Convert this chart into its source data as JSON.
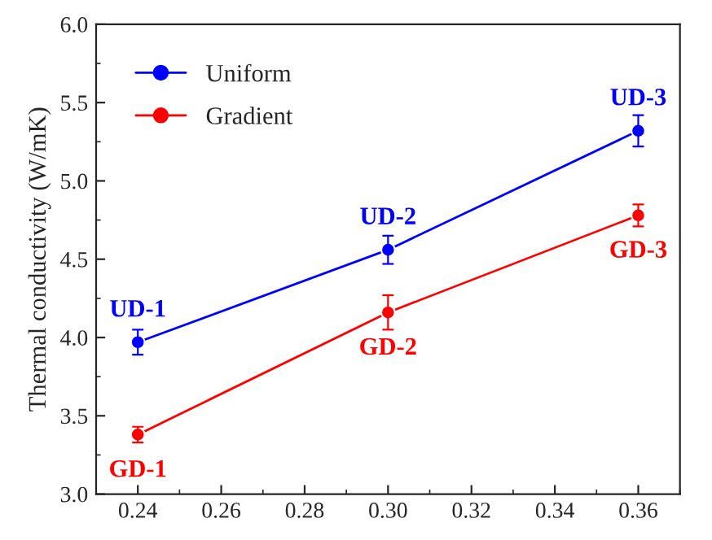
{
  "chart_data": {
    "type": "line",
    "ylabel": "Thermal conductivity (W/mK)",
    "x": [
      0.24,
      0.3,
      0.36
    ],
    "series": [
      {
        "name": "Uniform",
        "color": "#0000ff",
        "values": [
          3.97,
          4.56,
          5.32
        ],
        "errors": [
          0.08,
          0.09,
          0.1
        ]
      },
      {
        "name": "Gradient",
        "color": "#ff0000",
        "values": [
          3.38,
          4.16,
          4.78
        ],
        "errors": [
          0.05,
          0.11,
          0.07
        ]
      }
    ],
    "xlim": [
      0.23,
      0.37
    ],
    "xticks": [
      {
        "value": 0.24,
        "label": "0.24"
      },
      {
        "value": 0.26,
        "label": "0.26"
      },
      {
        "value": 0.28,
        "label": "0.28"
      },
      {
        "value": 0.3,
        "label": "0.30"
      },
      {
        "value": 0.32,
        "label": "0.32"
      },
      {
        "value": 0.34,
        "label": "0.34"
      },
      {
        "value": 0.36,
        "label": "0.36"
      }
    ],
    "ylim": [
      3.0,
      6.0
    ],
    "yticks": [
      {
        "value": 3.0,
        "label": "3.0"
      },
      {
        "value": 3.5,
        "label": "3.5"
      },
      {
        "value": 4.0,
        "label": "4.0"
      },
      {
        "value": 4.5,
        "label": "4.5"
      },
      {
        "value": 5.0,
        "label": "5.0"
      },
      {
        "value": 5.5,
        "label": "5.5"
      },
      {
        "value": 6.0,
        "label": "6.0"
      }
    ],
    "annotations": [
      {
        "text": "UD-1",
        "x": 0.24,
        "y": 3.97
      },
      {
        "text": "UD-2",
        "x": 0.3,
        "y": 4.56
      },
      {
        "text": "UD-3",
        "x": 0.36,
        "y": 5.32
      },
      {
        "text": "GD-1",
        "x": 0.24,
        "y": 3.38
      },
      {
        "text": "GD-2",
        "x": 0.3,
        "y": 4.16
      },
      {
        "text": "GD-3",
        "x": 0.36,
        "y": 4.78
      }
    ],
    "marker": "circle",
    "line_style": "solid",
    "legend": "top left",
    "grid": false
  }
}
